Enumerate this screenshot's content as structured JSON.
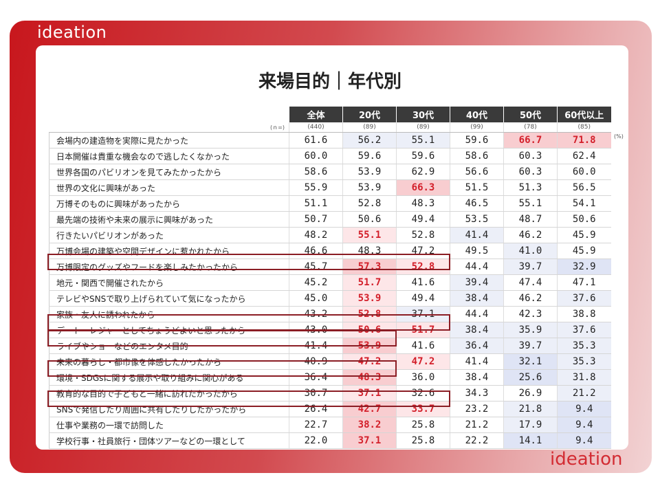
{
  "brand": "ideation",
  "title": "来場目的｜年代別",
  "unit": "(%)",
  "n_label": "(ｎ=)",
  "columns": [
    {
      "label": "全体",
      "n": "(440)"
    },
    {
      "label": "20代",
      "n": "(89)"
    },
    {
      "label": "30代",
      "n": "(89)"
    },
    {
      "label": "40代",
      "n": "(99)"
    },
    {
      "label": "50代",
      "n": "(78)"
    },
    {
      "label": "60代以上",
      "n": "(85)"
    }
  ],
  "rows": [
    {
      "label": "会場内の建造物を実際に見たかった",
      "values": [
        "61.6",
        "56.2",
        "55.1",
        "59.6",
        "66.7",
        "71.8"
      ]
    },
    {
      "label": "日本開催は貴重な機会なので逃したくなかった",
      "values": [
        "60.0",
        "59.6",
        "59.6",
        "58.6",
        "60.3",
        "62.4"
      ]
    },
    {
      "label": "世界各国のパビリオンを見てみたかったから",
      "values": [
        "58.6",
        "53.9",
        "62.9",
        "56.6",
        "60.3",
        "60.0"
      ]
    },
    {
      "label": "世界の文化に興味があった",
      "values": [
        "55.9",
        "53.9",
        "66.3",
        "51.5",
        "51.3",
        "56.5"
      ]
    },
    {
      "label": "万博そのものに興味があったから",
      "values": [
        "51.1",
        "52.8",
        "48.3",
        "46.5",
        "55.1",
        "54.1"
      ]
    },
    {
      "label": "最先端の技術や未来の展示に興味があった",
      "values": [
        "50.7",
        "50.6",
        "49.4",
        "53.5",
        "48.7",
        "50.6"
      ]
    },
    {
      "label": "行きたいパビリオンがあった",
      "values": [
        "48.2",
        "55.1",
        "52.8",
        "41.4",
        "46.2",
        "45.9"
      ]
    },
    {
      "label": "万博会場の建築や空間デザインに惹かれたから",
      "values": [
        "46.6",
        "48.3",
        "47.2",
        "49.5",
        "41.0",
        "45.9"
      ]
    },
    {
      "label": "万博限定のグッズやフードを楽しみたかったから",
      "values": [
        "45.7",
        "57.3",
        "52.8",
        "44.4",
        "39.7",
        "32.9"
      ]
    },
    {
      "label": "地元・関西で開催されたから",
      "values": [
        "45.2",
        "51.7",
        "41.6",
        "39.4",
        "47.4",
        "47.1"
      ]
    },
    {
      "label": "テレビやSNSで取り上げられていて気になったから",
      "values": [
        "45.0",
        "53.9",
        "49.4",
        "38.4",
        "46.2",
        "37.6"
      ]
    },
    {
      "label": "家族・友人に誘われたから",
      "values": [
        "43.2",
        "52.8",
        "37.1",
        "44.4",
        "42.3",
        "38.8"
      ]
    },
    {
      "label": "デート・レジャーとしてちょうどよいと思ったから",
      "values": [
        "43.0",
        "50.6",
        "51.7",
        "38.4",
        "35.9",
        "37.6"
      ]
    },
    {
      "label": "ライブやショーなどのエンタメ目的",
      "values": [
        "41.4",
        "53.9",
        "41.6",
        "36.4",
        "39.7",
        "35.3"
      ]
    },
    {
      "label": "未来の暮らし・都市像を体感したかったから",
      "values": [
        "40.9",
        "47.2",
        "47.2",
        "41.4",
        "32.1",
        "35.3"
      ]
    },
    {
      "label": "環境・SDGsに関する展示や取り組みに関心がある",
      "values": [
        "36.4",
        "48.3",
        "36.0",
        "38.4",
        "25.6",
        "31.8"
      ]
    },
    {
      "label": "教育的な目的で子どもと一緒に訪れたかったから",
      "values": [
        "30.7",
        "37.1",
        "32.6",
        "34.3",
        "26.9",
        "21.2"
      ]
    },
    {
      "label": "SNSで発信したり周囲に共有したりしたかったから",
      "values": [
        "26.4",
        "42.7",
        "33.7",
        "23.2",
        "21.8",
        "9.4"
      ]
    },
    {
      "label": "仕事や業務の一環で訪問した",
      "values": [
        "22.7",
        "38.2",
        "25.8",
        "21.2",
        "17.9",
        "9.4"
      ]
    },
    {
      "label": "学校行事・社員旅行・団体ツアーなどの一環として",
      "values": [
        "22.0",
        "37.1",
        "25.8",
        "22.2",
        "14.1",
        "9.4"
      ]
    }
  ]
}
